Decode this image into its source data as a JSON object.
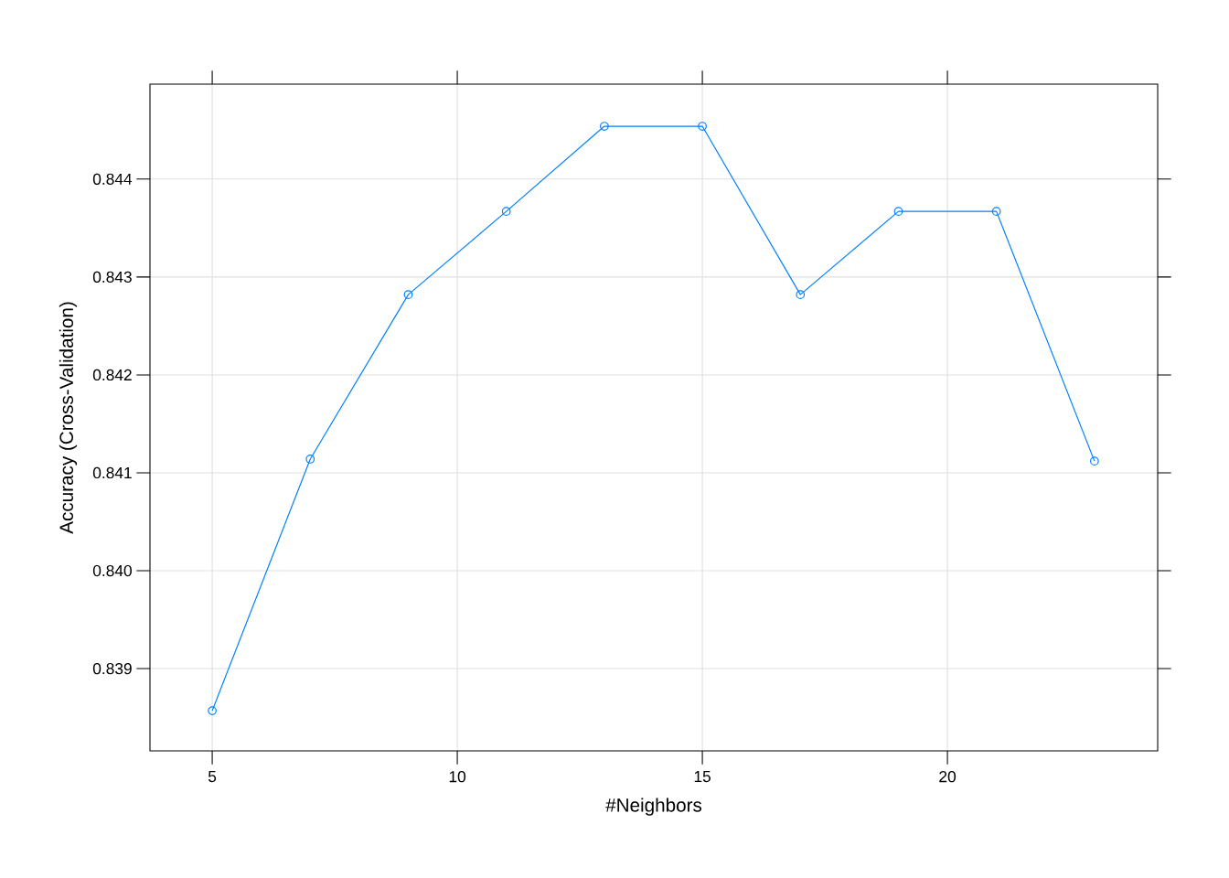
{
  "chart_data": {
    "type": "line",
    "xlabel": "#Neighbors",
    "ylabel": "Accuracy (Cross-Validation)",
    "x": [
      5,
      7,
      9,
      11,
      13,
      15,
      17,
      19,
      21,
      23
    ],
    "series": [
      {
        "color": "#0080ff",
        "values": [
          0.83857,
          0.84114,
          0.84282,
          0.84367,
          0.84454,
          0.84454,
          0.84282,
          0.84367,
          0.84367,
          0.84112
        ]
      }
    ],
    "xlim": [
      3.73,
      24.29
    ],
    "ylim": [
      0.83816,
      0.84497
    ],
    "xticks": [
      5,
      10,
      15,
      20
    ],
    "yticks": [
      {
        "value": 0.839,
        "label": "0.839"
      },
      {
        "value": 0.84,
        "label": "0.840"
      },
      {
        "value": 0.841,
        "label": "0.841"
      },
      {
        "value": 0.842,
        "label": "0.842"
      },
      {
        "value": 0.843,
        "label": "0.843"
      },
      {
        "value": 0.844,
        "label": "0.844"
      }
    ],
    "grid": true,
    "marker": "circle",
    "line_style": "solid"
  }
}
